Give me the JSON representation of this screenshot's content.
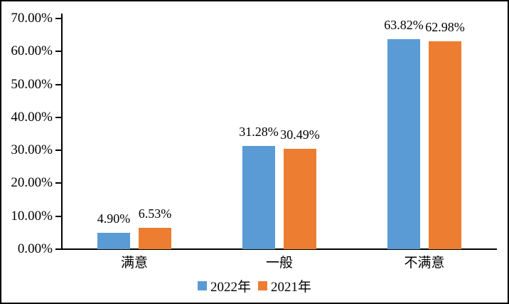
{
  "chart_data": {
    "type": "bar",
    "title": "",
    "categories": [
      "满意",
      "一般",
      "不满意"
    ],
    "series": [
      {
        "name": "2022年",
        "color": "#5B9BD5",
        "values": [
          4.9,
          31.28,
          63.82
        ],
        "data_labels": [
          "4.90%",
          "31.28%",
          "63.82%"
        ]
      },
      {
        "name": "2021年",
        "color": "#ED7D31",
        "values": [
          6.53,
          30.49,
          62.98
        ],
        "data_labels": [
          "6.53%",
          "30.49%",
          "62.98%"
        ]
      }
    ],
    "y_axis": {
      "min": 0,
      "max": 70,
      "tick_step": 10,
      "tick_labels": [
        "0.00%",
        "10.00%",
        "20.00%",
        "30.00%",
        "40.00%",
        "50.00%",
        "60.00%",
        "70.00%"
      ]
    },
    "xlabel": "",
    "ylabel": "",
    "grid": false,
    "legend_position": "bottom",
    "data_label_position": "above-bar"
  }
}
